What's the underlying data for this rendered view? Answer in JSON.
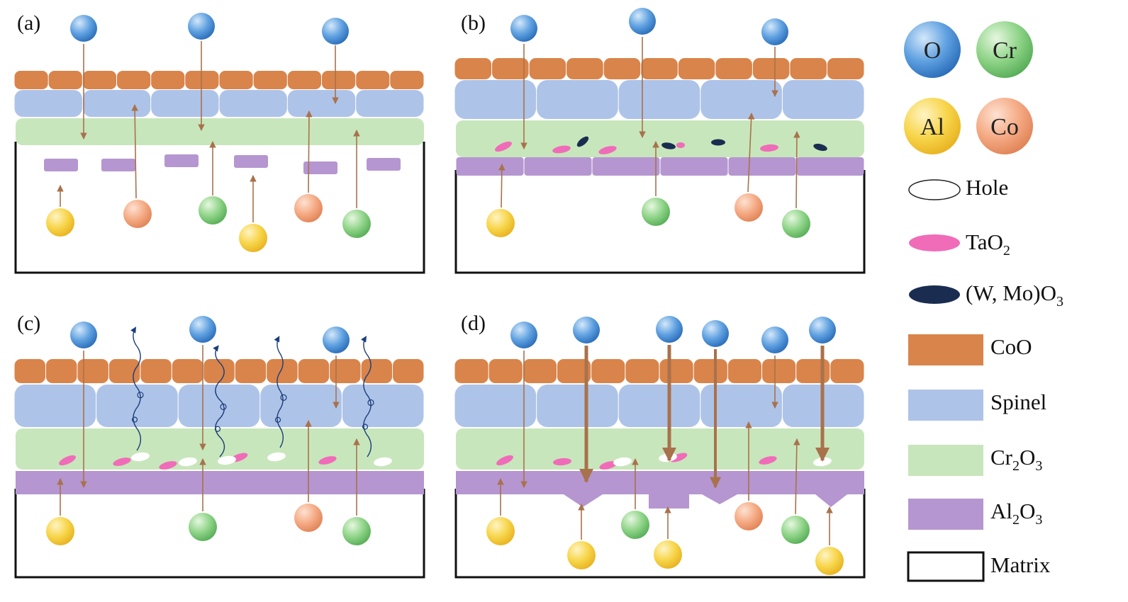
{
  "panels": [
    {
      "id": "a",
      "label": "(a)"
    },
    {
      "id": "b",
      "label": "(b)"
    },
    {
      "id": "c",
      "label": "(c)"
    },
    {
      "id": "d",
      "label": "(d)"
    }
  ],
  "legend": {
    "elements": [
      {
        "symbol": "O",
        "color": "#4a8fd6"
      },
      {
        "symbol": "Cr",
        "color": "#7fcf7a"
      },
      {
        "symbol": "Al",
        "color": "#f5cc3a"
      },
      {
        "symbol": "Co",
        "color": "#f2a07a"
      }
    ],
    "hole": "Hole",
    "tao2": {
      "main": "TaO",
      "sub": "2"
    },
    "wmoo3": {
      "main": "(W, Mo)O",
      "sub": "3"
    },
    "coo": "CoO",
    "spinel": "Spinel",
    "cr2o3": {
      "a": "Cr",
      "s1": "2",
      "b": "O",
      "s2": "3"
    },
    "al2o3": {
      "a": "Al",
      "s1": "2",
      "b": "O",
      "s2": "3"
    },
    "matrix": "Matrix"
  },
  "colors": {
    "CoO": "#d9844a",
    "Spinel": "#aec3e8",
    "Cr2O3": "#c8e6bb",
    "Al2O3": "#b596d0",
    "TaO2": "#f06cb8",
    "WMoO3": "#1a2d50",
    "arrow": "#a8724c",
    "gas": "#1a3d7a"
  }
}
